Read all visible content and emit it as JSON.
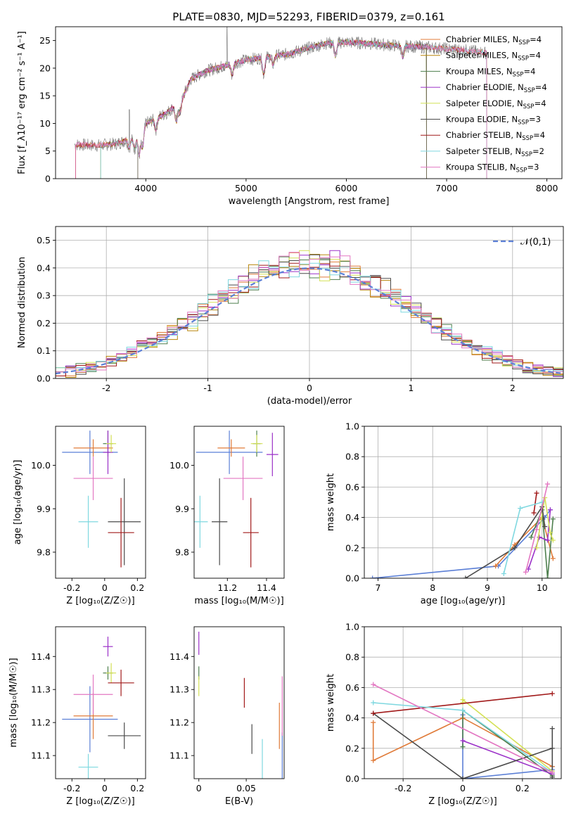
{
  "colors": [
    "#5b7fd6",
    "#e07b39",
    "#b8860b",
    "#4e7f4e",
    "#9b30c8",
    "#d4e157",
    "#4a4a4a",
    "#a11a1a",
    "#7fd8e0",
    "#e377c2",
    "#777777"
  ],
  "chart_data": [
    {
      "id": "spectrum",
      "type": "line",
      "title": "PLATE=0830, MJD=52293, FIBERID=0379, z=0.161",
      "xlabel": "wavelength [Angstrom, rest frame]",
      "ylabel": "Flux [f_λ10⁻¹⁷ erg cm⁻² s⁻¹ A⁻¹]",
      "xlim": [
        3100,
        8150
      ],
      "ylim": [
        0,
        27.5
      ],
      "xticks": [
        4000,
        5000,
        6000,
        7000,
        8000
      ],
      "yticks": [
        0,
        5,
        10,
        15,
        20,
        25
      ],
      "legend_position": "upper-right",
      "continuum_x": [
        3280,
        3500,
        3700,
        3900,
        4000,
        4200,
        4350,
        4450,
        4600,
        4800,
        5000,
        5200,
        5400,
        5600,
        5800,
        6000,
        6200,
        6400,
        6600,
        6800,
        7000,
        7200,
        7400
      ],
      "continuum_y": [
        6.2,
        6.0,
        6.3,
        7.5,
        10.0,
        11.8,
        14.0,
        18.0,
        19.5,
        20.5,
        21.5,
        22.0,
        22.5,
        23.5,
        24.5,
        24.7,
        24.5,
        24.2,
        24.0,
        23.8,
        23.5,
        23.2,
        22.8
      ],
      "series": [
        {
          "name": "Chabrier MILES, N_SSP=4",
          "x_start": 3300,
          "x_end": 7400
        },
        {
          "name": "Salpeter MILES, N_SSP=4",
          "x_start": 3550,
          "x_end": 6800
        },
        {
          "name": "Kroupa MILES, N_SSP=4",
          "x_start": 3550,
          "x_end": 6800
        },
        {
          "name": "Chabrier ELODIE, N_SSP=4",
          "x_start": 3920,
          "x_end": 6800
        },
        {
          "name": "Salpeter ELODIE, N_SSP=4",
          "x_start": 3920,
          "x_end": 6800
        },
        {
          "name": "Kroupa ELODIE, N_SSP=3",
          "x_start": 3920,
          "x_end": 6800
        },
        {
          "name": "Chabrier STELIB, N_SSP=4",
          "x_start": 3300,
          "x_end": 7400
        },
        {
          "name": "Salpeter STELIB, N_SSP=2",
          "x_start": 3550,
          "x_end": 7400
        },
        {
          "name": "Kroupa STELIB, N_SSP=3",
          "x_start": 3300,
          "x_end": 7400
        }
      ]
    },
    {
      "id": "residuals",
      "type": "line",
      "xlabel": "(data-model)/error",
      "ylabel": "Normed distribution",
      "xlim": [
        -2.5,
        2.5
      ],
      "ylim": [
        0,
        0.55
      ],
      "xticks": [
        -2,
        -1,
        0,
        1,
        2
      ],
      "yticks": [
        0.0,
        0.1,
        0.2,
        0.3,
        0.4,
        0.5
      ],
      "grid": true,
      "legend": "𝒩(0,1)",
      "legend_position": "upper-right",
      "bin_width": 0.1,
      "series_count": 9,
      "reference_curve": "gaussian mean 0, sigma 1"
    },
    {
      "id": "age-vs-Z",
      "type": "scatter",
      "xlabel": "Z [log₁₀(Z/Z☉)]",
      "ylabel": "age  [log₁₀(age/yr)]",
      "xlim": [
        -0.3,
        0.25
      ],
      "ylim": [
        9.74,
        10.09
      ],
      "xticks": [
        -0.2,
        0.0,
        0.2
      ],
      "yticks": [
        9.8,
        9.9,
        10.0
      ],
      "points": [
        {
          "c": 0,
          "x": -0.09,
          "y": 10.03,
          "ex": 0.17,
          "ey": 0.05
        },
        {
          "c": 1,
          "x": -0.07,
          "y": 10.04,
          "ex": 0.12,
          "ey": 0.02
        },
        {
          "c": 3,
          "x": 0.02,
          "y": 10.05,
          "ex": 0.03,
          "ey": 0.03
        },
        {
          "c": 4,
          "x": 0.02,
          "y": 10.03,
          "ex": 0.03,
          "ey": 0.05
        },
        {
          "c": 5,
          "x": 0.04,
          "y": 10.05,
          "ex": 0.03,
          "ey": 0.02
        },
        {
          "c": 6,
          "x": 0.12,
          "y": 9.87,
          "ex": 0.1,
          "ey": 0.1
        },
        {
          "c": 7,
          "x": 0.1,
          "y": 9.845,
          "ex": 0.08,
          "ey": 0.08
        },
        {
          "c": 8,
          "x": -0.1,
          "y": 9.87,
          "ex": 0.06,
          "ey": 0.06
        },
        {
          "c": 9,
          "x": -0.07,
          "y": 9.97,
          "ex": 0.12,
          "ey": 0.05
        }
      ]
    },
    {
      "id": "age-vs-mass",
      "type": "scatter",
      "xlabel": "mass [log₁₀(M/M☉)]",
      "xlim": [
        11.03,
        11.49
      ],
      "ylim": [
        9.74,
        10.09
      ],
      "xticks": [
        11.2,
        11.4
      ],
      "yticks": [
        9.8,
        9.9,
        10.0
      ],
      "points": [
        {
          "c": 0,
          "x": 11.21,
          "y": 10.03,
          "ex": 0.17,
          "ey": 0.05
        },
        {
          "c": 1,
          "x": 11.22,
          "y": 10.04,
          "ex": 0.07,
          "ey": 0.02
        },
        {
          "c": 3,
          "x": 11.35,
          "y": 10.05,
          "ex": 0.02,
          "ey": 0.03
        },
        {
          "c": 4,
          "x": 11.43,
          "y": 10.025,
          "ex": 0.03,
          "ey": 0.05
        },
        {
          "c": 5,
          "x": 11.35,
          "y": 10.05,
          "ex": 0.03,
          "ey": 0.02
        },
        {
          "c": 6,
          "x": 11.16,
          "y": 9.87,
          "ex": 0.04,
          "ey": 0.1
        },
        {
          "c": 7,
          "x": 11.32,
          "y": 9.845,
          "ex": 0.04,
          "ey": 0.08
        },
        {
          "c": 8,
          "x": 11.06,
          "y": 9.87,
          "ex": 0.04,
          "ey": 0.06
        },
        {
          "c": 9,
          "x": 11.28,
          "y": 9.97,
          "ex": 0.1,
          "ey": 0.05
        }
      ]
    },
    {
      "id": "mass-weight-vs-age",
      "type": "line",
      "xlabel": "age  [log₁₀(age/yr)]",
      "ylabel": "mass weight",
      "xlim": [
        6.75,
        10.35
      ],
      "ylim": [
        0,
        1.0
      ],
      "xticks": [
        7,
        8,
        9,
        10
      ],
      "yticks": [
        0.0,
        0.2,
        0.4,
        0.6,
        0.8,
        1.0
      ],
      "grid": true,
      "series": [
        {
          "c": 0,
          "x": [
            6.9,
            9.2,
            10.05,
            10.15
          ],
          "y": [
            0.0,
            0.08,
            0.4,
            0.45
          ]
        },
        {
          "c": 1,
          "x": [
            9.15,
            9.5,
            10.0,
            10.2
          ],
          "y": [
            0.08,
            0.22,
            0.4,
            0.13
          ]
        },
        {
          "c": 3,
          "x": [
            9.8,
            10.0,
            10.1,
            10.2
          ],
          "y": [
            0.27,
            0.45,
            0.0,
            0.39
          ]
        },
        {
          "c": 4,
          "x": [
            9.75,
            9.95,
            10.1,
            10.15
          ],
          "y": [
            0.06,
            0.27,
            0.25,
            0.45
          ]
        },
        {
          "c": 5,
          "x": [
            9.9,
            10.05,
            10.15,
            10.2
          ],
          "y": [
            0.2,
            0.53,
            0.3,
            0.25
          ]
        },
        {
          "c": 6,
          "x": [
            8.6,
            9.5,
            10.0,
            10.05
          ],
          "y": [
            0.0,
            0.2,
            0.47,
            0.34
          ]
        },
        {
          "c": 7,
          "x": [
            9.85,
            9.9
          ],
          "y": [
            0.43,
            0.56
          ]
        },
        {
          "c": 8,
          "x": [
            9.3,
            9.6,
            10.0
          ],
          "y": [
            0.03,
            0.46,
            0.5
          ]
        },
        {
          "c": 9,
          "x": [
            9.7,
            9.9,
            10.1
          ],
          "y": [
            0.04,
            0.32,
            0.62
          ]
        }
      ]
    },
    {
      "id": "mass-vs-Z",
      "type": "scatter",
      "xlabel": "Z [log₁₀(Z/Z☉)]",
      "ylabel": "mass [log₁₀(M/M☉)]",
      "xlim": [
        -0.3,
        0.25
      ],
      "ylim": [
        11.03,
        11.49
      ],
      "xticks": [
        -0.2,
        0.0,
        0.2
      ],
      "yticks": [
        11.1,
        11.2,
        11.3,
        11.4
      ],
      "points": [
        {
          "c": 0,
          "x": -0.09,
          "y": 11.21,
          "ex": 0.17,
          "ey": 0.1
        },
        {
          "c": 1,
          "x": -0.07,
          "y": 11.22,
          "ex": 0.12,
          "ey": 0.07
        },
        {
          "c": 3,
          "x": 0.02,
          "y": 11.35,
          "ex": 0.03,
          "ey": 0.02
        },
        {
          "c": 4,
          "x": 0.02,
          "y": 11.43,
          "ex": 0.03,
          "ey": 0.03
        },
        {
          "c": 5,
          "x": 0.04,
          "y": 11.35,
          "ex": 0.03,
          "ey": 0.03
        },
        {
          "c": 6,
          "x": 0.12,
          "y": 11.16,
          "ex": 0.1,
          "ey": 0.04
        },
        {
          "c": 7,
          "x": 0.1,
          "y": 11.32,
          "ex": 0.08,
          "ey": 0.04
        },
        {
          "c": 8,
          "x": -0.1,
          "y": 11.065,
          "ex": 0.06,
          "ey": 0.04
        },
        {
          "c": 9,
          "x": -0.07,
          "y": 11.285,
          "ex": 0.12,
          "ey": 0.06
        }
      ]
    },
    {
      "id": "mass-vs-EBV",
      "type": "scatter",
      "xlabel": "E(B-V)",
      "xlim": [
        -0.005,
        0.09
      ],
      "ylim": [
        11.03,
        11.49
      ],
      "xticks": [
        0.0,
        0.05
      ],
      "yticks": [
        11.1,
        11.2,
        11.3,
        11.4
      ],
      "points": [
        {
          "c": 0,
          "x": 0.088,
          "y": 11.1,
          "ex": 0,
          "ey": 0.07
        },
        {
          "c": 1,
          "x": 0.085,
          "y": 11.19,
          "ex": 0,
          "ey": 0.07
        },
        {
          "c": 3,
          "x": 0.0,
          "y": 11.35,
          "ex": 0,
          "ey": 0.02
        },
        {
          "c": 4,
          "x": 0.0,
          "y": 11.44,
          "ex": 0,
          "ey": 0.035
        },
        {
          "c": 5,
          "x": 0.0,
          "y": 11.31,
          "ex": 0,
          "ey": 0.03
        },
        {
          "c": 6,
          "x": 0.056,
          "y": 11.15,
          "ex": 0,
          "ey": 0.045
        },
        {
          "c": 7,
          "x": 0.048,
          "y": 11.29,
          "ex": 0,
          "ey": 0.045
        },
        {
          "c": 8,
          "x": 0.067,
          "y": 11.09,
          "ex": 0,
          "ey": 0.06
        },
        {
          "c": 9,
          "x": 0.088,
          "y": 11.25,
          "ex": 0,
          "ey": 0.09
        }
      ]
    },
    {
      "id": "mass-weight-vs-Z",
      "type": "line",
      "xlabel": "Z [log₁₀(Z/Z☉)]",
      "ylabel": "mass weight",
      "xlim": [
        -0.33,
        0.33
      ],
      "ylim": [
        0,
        1.0
      ],
      "xticks": [
        -0.2,
        0.0,
        0.2
      ],
      "yticks": [
        0.0,
        0.2,
        0.4,
        0.6,
        0.8,
        1.0
      ],
      "grid": true,
      "series": [
        {
          "c": 0,
          "x": [
            0.0,
            0.0,
            0.3,
            0.3
          ],
          "y": [
            0.42,
            0.0,
            0.06,
            0.08
          ]
        },
        {
          "c": 1,
          "x": [
            -0.3,
            -0.3,
            0.0,
            0.3
          ],
          "y": [
            0.37,
            0.12,
            0.4,
            0.08
          ]
        },
        {
          "c": 3,
          "x": [
            0.0,
            0.0,
            0.3
          ],
          "y": [
            0.21,
            0.45,
            0.02
          ]
        },
        {
          "c": 4,
          "x": [
            0.0,
            0.3
          ],
          "y": [
            0.25,
            0.03
          ]
        },
        {
          "c": 5,
          "x": [
            0.0,
            0.0,
            0.3
          ],
          "y": [
            0.5,
            0.52,
            0.05
          ]
        },
        {
          "c": 6,
          "x": [
            -0.3,
            0.0,
            0.3,
            0.3,
            0.3
          ],
          "y": [
            0.43,
            0.0,
            0.2,
            0.33,
            0.01
          ]
        },
        {
          "c": 7,
          "x": [
            -0.3,
            0.3
          ],
          "y": [
            0.43,
            0.56
          ]
        },
        {
          "c": 8,
          "x": [
            -0.3,
            0.0,
            0.3
          ],
          "y": [
            0.5,
            0.45,
            0.04
          ]
        },
        {
          "c": 9,
          "x": [
            -0.3,
            0.3
          ],
          "y": [
            0.62,
            0.04
          ]
        }
      ]
    }
  ]
}
